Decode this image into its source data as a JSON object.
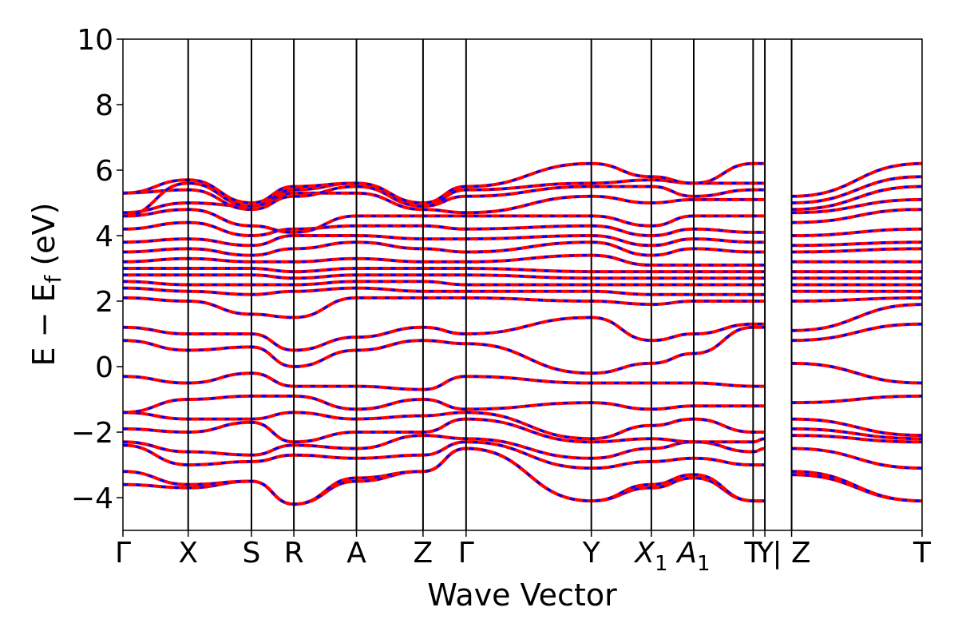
{
  "chart_data": {
    "type": "line",
    "title": "",
    "xlabel": "Wave Vector",
    "ylabel": "E − E_f (eV)",
    "ylabel_parts": {
      "pre": "E − E",
      "sub": "f",
      "post": " (eV)"
    },
    "ylim": [
      -5,
      10
    ],
    "yticks": [
      -4,
      -2,
      0,
      2,
      4,
      6,
      8,
      10
    ],
    "ytick_labels": [
      "−4",
      "−2",
      "0",
      "2",
      "4",
      "6",
      "8",
      "10"
    ],
    "xlim": [
      0,
      12.25
    ],
    "kpoints": [
      {
        "x": 0.0,
        "label": "Γ"
      },
      {
        "x": 1.0,
        "label": "X"
      },
      {
        "x": 1.97,
        "label": "S"
      },
      {
        "x": 2.62,
        "label": "R"
      },
      {
        "x": 3.58,
        "label": "A"
      },
      {
        "x": 4.6,
        "label": "Z"
      },
      {
        "x": 5.26,
        "label": "Γ"
      },
      {
        "x": 7.18,
        "label": "Y"
      },
      {
        "x": 8.1,
        "label": "X",
        "sub": "1",
        "italic": true
      },
      {
        "x": 8.75,
        "label": "A",
        "sub": "1",
        "italic": true
      },
      {
        "x": 9.66,
        "label": "T"
      },
      {
        "x": 9.84,
        "label": "Y"
      },
      {
        "x": 10.25,
        "label": "| Z"
      },
      {
        "x": 12.25,
        "label": "T"
      }
    ],
    "segment_breaks": [
      10.25
    ],
    "grid": false,
    "series_colors": {
      "spin_up": "#ff0000",
      "spin_down": "#0000ff"
    },
    "band_style": "spin-up red solid with spin-down blue dashed overlaid (degenerate)",
    "series": [
      {
        "values_at_kpoints": [
          -3.6,
          -3.7,
          -3.5,
          -4.2,
          -3.5,
          -3.2,
          -2.5,
          -4.1,
          -3.7,
          -3.4,
          -4.1,
          -4.1,
          -3.3,
          -4.1
        ]
      },
      {
        "values_at_kpoints": [
          -3.2,
          -3.6,
          -3.5,
          -4.2,
          -3.4,
          -3.2,
          -2.5,
          -4.1,
          -3.6,
          -3.3,
          -4.1,
          -4.1,
          -3.2,
          -4.1
        ]
      },
      {
        "values_at_kpoints": [
          -2.4,
          -3.0,
          -2.9,
          -2.7,
          -2.8,
          -2.7,
          -2.3,
          -3.1,
          -2.9,
          -2.8,
          -3.0,
          -3.0,
          -2.5,
          -3.1
        ]
      },
      {
        "values_at_kpoints": [
          -2.3,
          -2.6,
          -2.7,
          -2.4,
          -2.5,
          -2.1,
          -2.2,
          -2.8,
          -2.5,
          -2.3,
          -2.6,
          -2.5,
          -2.1,
          -2.3
        ]
      },
      {
        "values_at_kpoints": [
          -1.9,
          -2.0,
          -1.7,
          -2.3,
          -2.0,
          -2.0,
          -1.6,
          -2.3,
          -2.2,
          -2.3,
          -2.3,
          -2.2,
          -1.9,
          -2.2
        ]
      },
      {
        "values_at_kpoints": [
          -1.4,
          -1.6,
          -1.6,
          -1.4,
          -1.6,
          -1.5,
          -1.4,
          -2.2,
          -1.8,
          -1.6,
          -2.0,
          -2.0,
          -1.6,
          -2.1
        ]
      },
      {
        "values_at_kpoints": [
          -1.4,
          -1.0,
          -0.9,
          -0.9,
          -1.3,
          -1.0,
          -1.3,
          -1.1,
          -1.3,
          -1.2,
          -1.2,
          -1.2,
          -1.1,
          -0.9
        ]
      },
      {
        "values_at_kpoints": [
          -0.3,
          -0.5,
          -0.2,
          -0.6,
          -0.6,
          -0.7,
          -0.3,
          -0.5,
          -0.5,
          -0.5,
          -0.6,
          -0.6,
          0.1,
          -0.5
        ]
      },
      {
        "values_at_kpoints": [
          0.8,
          0.5,
          0.6,
          0.0,
          0.5,
          0.8,
          0.7,
          -0.2,
          0.1,
          0.4,
          1.2,
          1.2,
          0.8,
          1.3
        ]
      },
      {
        "values_at_kpoints": [
          1.2,
          1.0,
          1.0,
          0.5,
          0.9,
          1.2,
          1.0,
          1.5,
          0.8,
          1.0,
          1.3,
          1.3,
          1.1,
          1.9
        ]
      },
      {
        "values_at_kpoints": [
          2.1,
          2.0,
          1.6,
          1.5,
          2.1,
          2.1,
          2.1,
          2.0,
          1.9,
          2.0,
          2.0,
          2.0,
          2.0,
          2.1
        ]
      },
      {
        "values_at_kpoints": [
          2.4,
          2.3,
          2.2,
          2.3,
          2.4,
          2.3,
          2.3,
          2.3,
          2.2,
          2.2,
          2.2,
          2.2,
          2.3,
          2.3
        ]
      },
      {
        "values_at_kpoints": [
          2.6,
          2.5,
          2.5,
          2.5,
          2.6,
          2.6,
          2.5,
          2.5,
          2.5,
          2.5,
          2.5,
          2.5,
          2.5,
          2.5
        ]
      },
      {
        "values_at_kpoints": [
          2.8,
          2.8,
          2.8,
          2.7,
          2.8,
          2.8,
          2.8,
          2.7,
          2.7,
          2.7,
          2.7,
          2.7,
          2.7,
          2.7
        ]
      },
      {
        "values_at_kpoints": [
          3.0,
          3.0,
          3.0,
          2.9,
          3.0,
          3.0,
          3.0,
          2.9,
          2.9,
          2.9,
          2.9,
          2.9,
          2.9,
          2.9
        ]
      },
      {
        "values_at_kpoints": [
          3.2,
          3.3,
          3.2,
          3.2,
          3.3,
          3.2,
          3.2,
          3.4,
          3.1,
          3.1,
          3.1,
          3.1,
          3.2,
          3.2
        ]
      },
      {
        "values_at_kpoints": [
          3.5,
          3.6,
          3.4,
          3.6,
          3.8,
          3.6,
          3.5,
          3.8,
          3.4,
          3.6,
          3.5,
          3.5,
          3.5,
          3.6
        ]
      },
      {
        "values_at_kpoints": [
          3.8,
          3.9,
          3.7,
          4.0,
          4.0,
          3.9,
          3.9,
          4.0,
          3.7,
          3.9,
          3.8,
          3.8,
          3.7,
          3.8
        ]
      },
      {
        "values_at_kpoints": [
          4.2,
          4.4,
          4.0,
          4.2,
          4.3,
          4.3,
          4.2,
          4.3,
          4.0,
          4.2,
          4.1,
          4.1,
          4.0,
          4.2
        ]
      },
      {
        "values_at_kpoints": [
          4.6,
          4.8,
          4.3,
          4.1,
          4.6,
          4.6,
          4.6,
          4.6,
          4.3,
          4.6,
          4.6,
          4.6,
          4.4,
          4.8
        ]
      },
      {
        "values_at_kpoints": [
          4.7,
          5.0,
          4.9,
          5.3,
          5.3,
          4.8,
          4.7,
          5.2,
          5.0,
          5.1,
          5.1,
          5.1,
          4.7,
          5.1
        ]
      },
      {
        "values_at_kpoints": [
          5.3,
          5.4,
          4.8,
          5.2,
          5.5,
          4.9,
          5.2,
          5.5,
          5.5,
          5.2,
          5.4,
          5.4,
          4.8,
          5.5
        ]
      },
      {
        "values_at_kpoints": [
          4.6,
          5.6,
          4.9,
          5.4,
          5.6,
          4.9,
          5.4,
          5.6,
          5.7,
          5.6,
          5.6,
          5.6,
          5.0,
          5.8
        ]
      },
      {
        "values_at_kpoints": [
          5.3,
          5.7,
          5.0,
          5.5,
          5.6,
          5.0,
          5.5,
          6.2,
          5.8,
          5.6,
          6.2,
          6.2,
          5.2,
          6.2
        ]
      }
    ]
  }
}
